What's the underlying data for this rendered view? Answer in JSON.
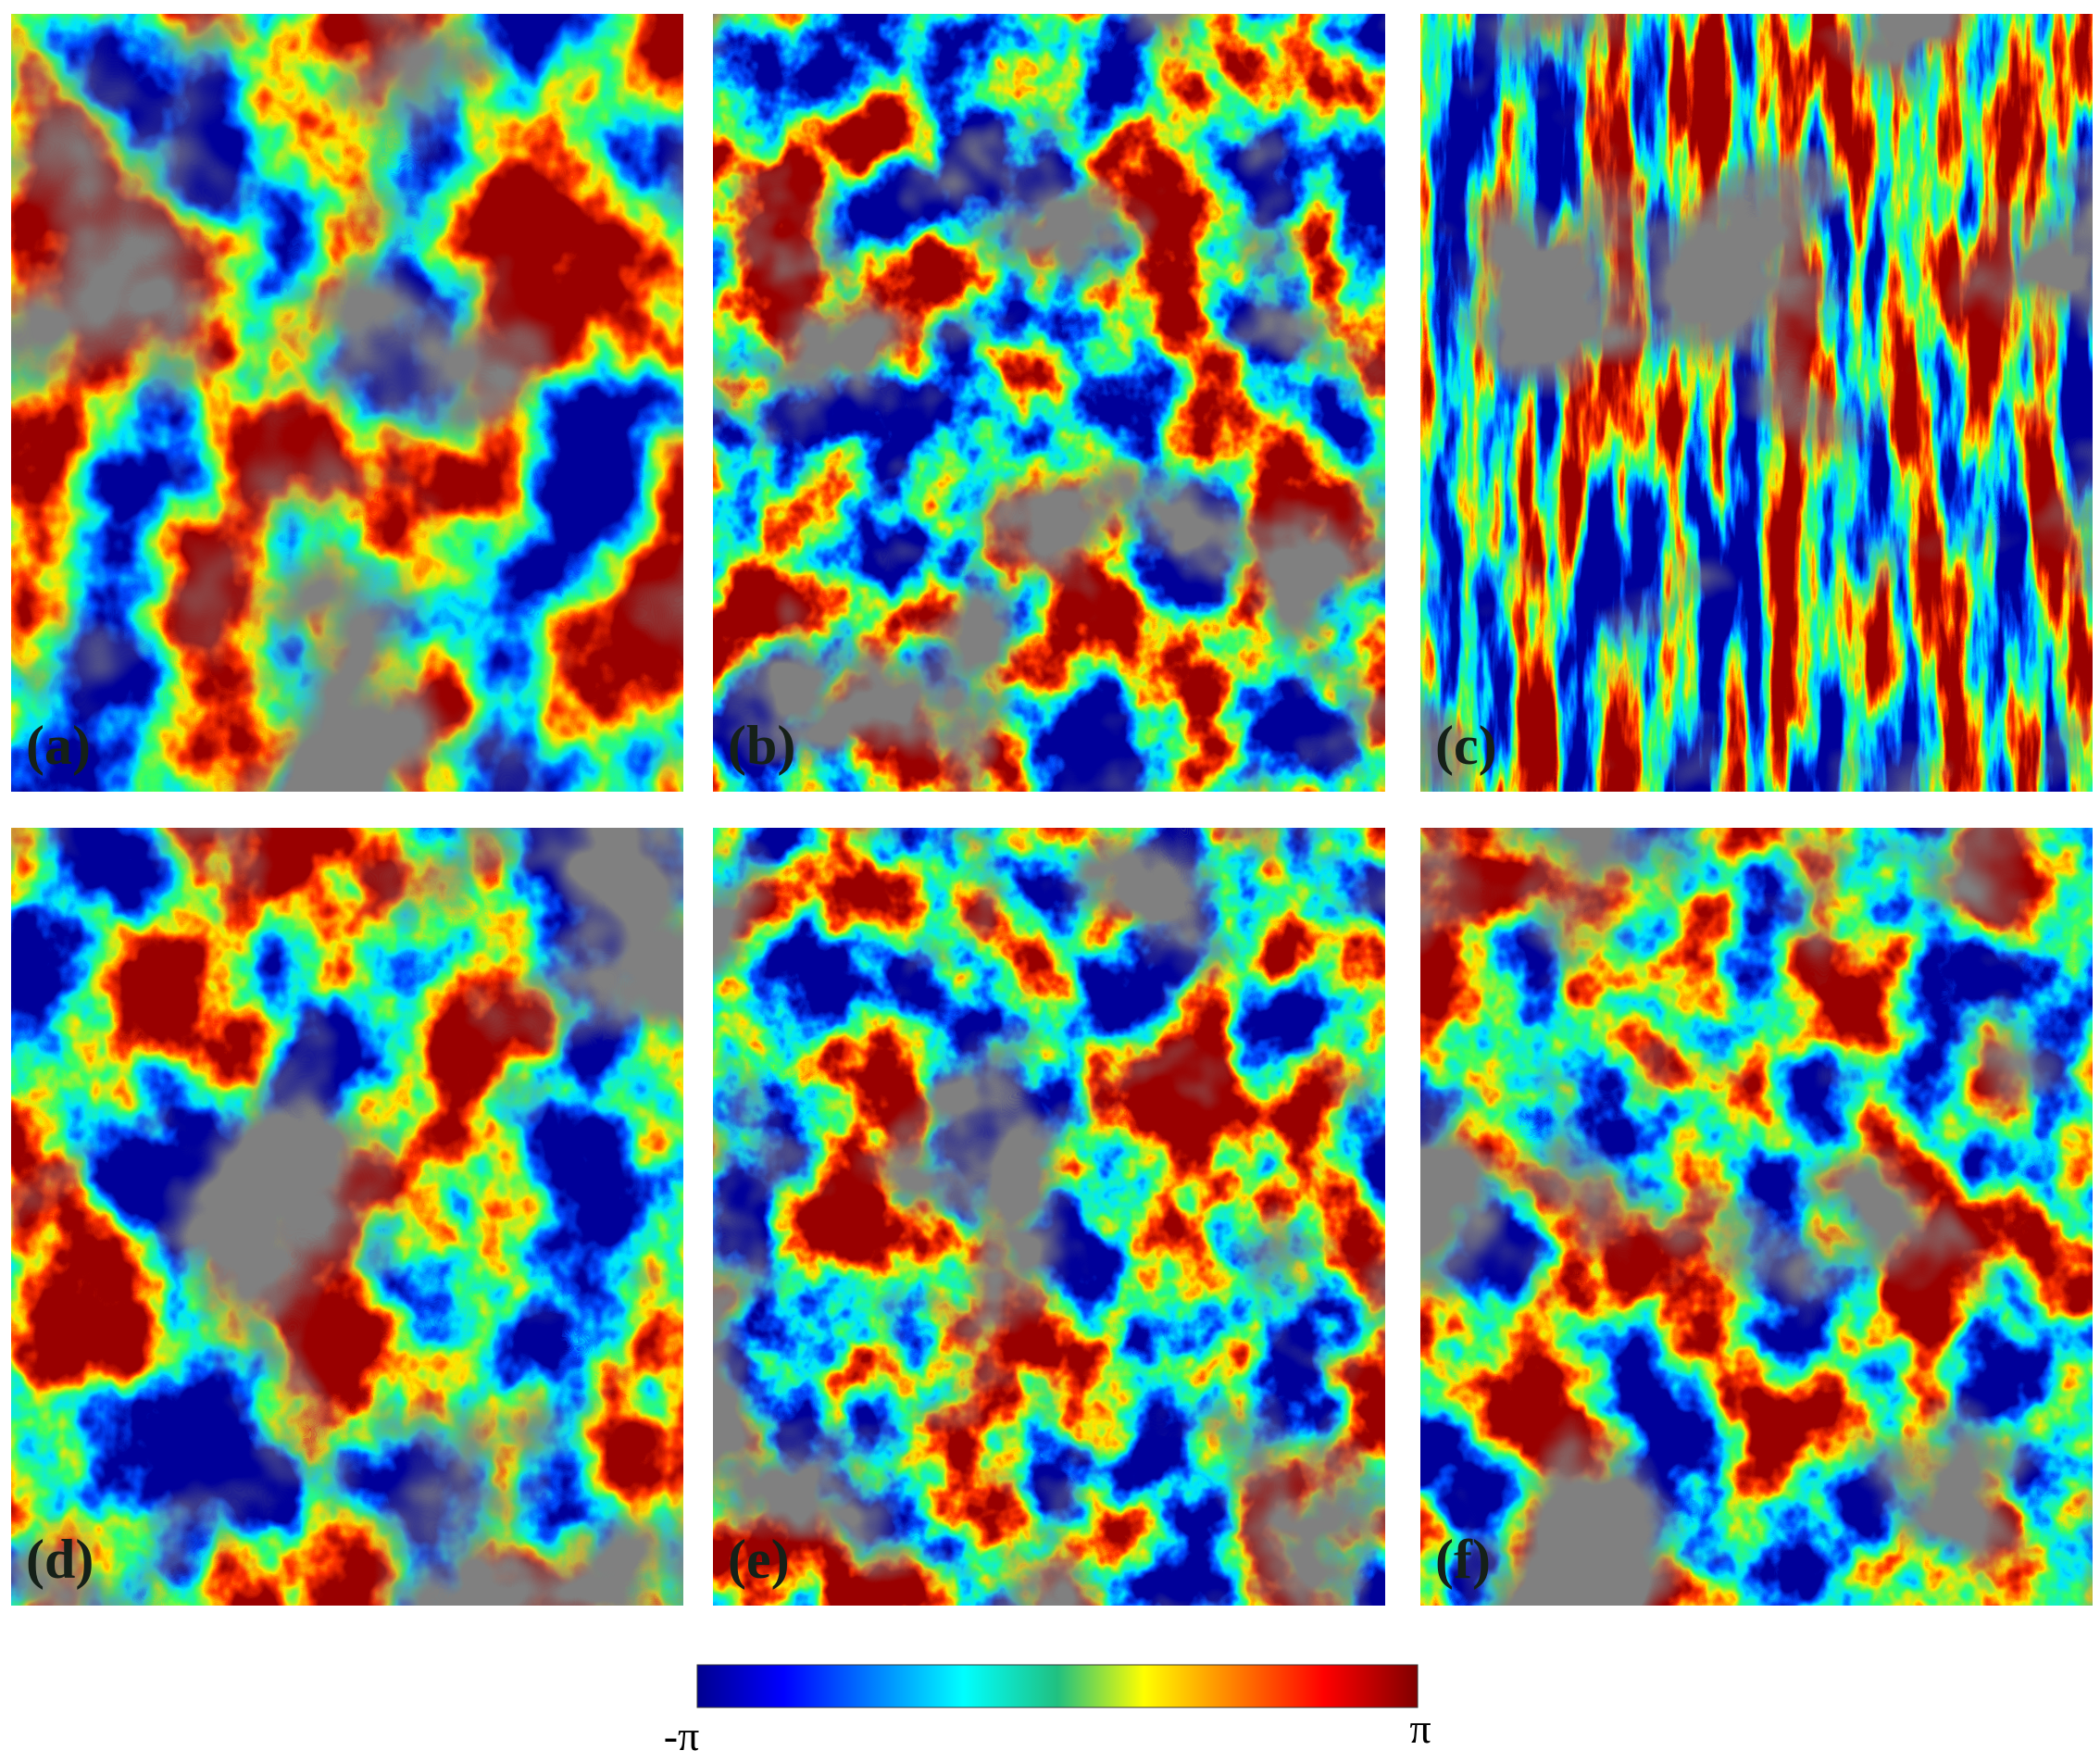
{
  "panels": [
    {
      "label": "(a)"
    },
    {
      "label": "(b)"
    },
    {
      "label": "(c)"
    },
    {
      "label": "(d)"
    },
    {
      "label": "(e)"
    },
    {
      "label": "(f)"
    }
  ],
  "colorbar": {
    "min_label": "-π",
    "max_label": "π"
  }
}
